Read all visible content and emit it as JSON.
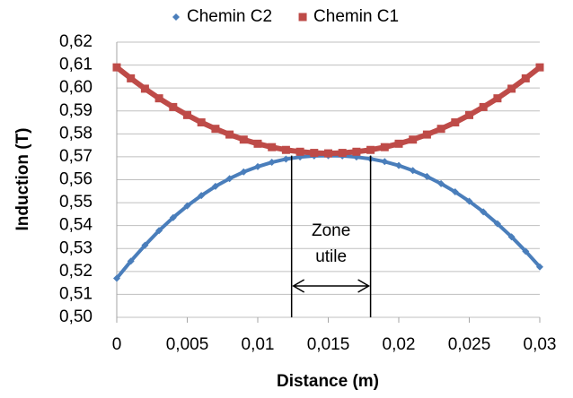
{
  "chart_data": {
    "type": "line",
    "x_label": "Distance (m)",
    "y_label": "Induction (T)",
    "x": [
      0,
      0.001,
      0.002,
      0.003,
      0.004,
      0.005,
      0.006,
      0.007,
      0.008,
      0.009,
      0.01,
      0.011,
      0.012,
      0.013,
      0.014,
      0.015,
      0.016,
      0.017,
      0.018,
      0.019,
      0.02,
      0.021,
      0.022,
      0.023,
      0.024,
      0.025,
      0.026,
      0.027,
      0.028,
      0.029,
      0.03
    ],
    "series": [
      {
        "name": "Chemin C2",
        "color": "#4a7ebb",
        "marker": "diamond",
        "values": [
          0.517,
          0.5245,
          0.5314,
          0.5378,
          0.5435,
          0.5486,
          0.5531,
          0.5571,
          0.5605,
          0.5634,
          0.5657,
          0.5676,
          0.569,
          0.5699,
          0.5704,
          0.5705,
          0.5704,
          0.5699,
          0.5691,
          0.5679,
          0.5662,
          0.564,
          0.5614,
          0.5583,
          0.5547,
          0.5506,
          0.546,
          0.5408,
          0.5351,
          0.5288,
          0.522
        ]
      },
      {
        "name": "Chemin C1",
        "color": "#be4b48",
        "marker": "square",
        "values": [
          0.609,
          0.6042,
          0.5997,
          0.5955,
          0.5917,
          0.5882,
          0.585,
          0.5822,
          0.5797,
          0.5775,
          0.5757,
          0.5742,
          0.573,
          0.5722,
          0.5717,
          0.5715,
          0.5717,
          0.5722,
          0.573,
          0.5742,
          0.5757,
          0.5775,
          0.5797,
          0.5822,
          0.585,
          0.5882,
          0.5917,
          0.5955,
          0.5997,
          0.6042,
          0.609
        ]
      }
    ],
    "xlim": [
      0,
      0.03
    ],
    "xticks": [
      0,
      {
        "value": 0.005,
        "label": "0,005"
      },
      {
        "value": 0.01,
        "label": "0,01"
      },
      {
        "value": 0.015,
        "label": "0,015"
      },
      {
        "value": 0.02,
        "label": "0,02"
      },
      {
        "value": 0.025,
        "label": "0,025"
      },
      {
        "value": 0.03,
        "label": "0,03"
      }
    ],
    "ylim": [
      0.5,
      0.62
    ],
    "yticks": [
      {
        "value": 0.5,
        "label": "0,50"
      },
      {
        "value": 0.51,
        "label": "0,51"
      },
      {
        "value": 0.52,
        "label": "0,52"
      },
      {
        "value": 0.53,
        "label": "0,53"
      },
      {
        "value": 0.54,
        "label": "0,54"
      },
      {
        "value": 0.55,
        "label": "0,55"
      },
      {
        "value": 0.56,
        "label": "0,56"
      },
      {
        "value": 0.57,
        "label": "0,57"
      },
      {
        "value": 0.58,
        "label": "0,58"
      },
      {
        "value": 0.59,
        "label": "0,59"
      },
      {
        "value": 0.6,
        "label": "0,60"
      },
      {
        "value": 0.61,
        "label": "0,61"
      },
      {
        "value": 0.62,
        "label": "0,62"
      }
    ],
    "grid": true,
    "legend": "top",
    "zone": {
      "x": [
        0.0124,
        0.018
      ],
      "top": 0.5705,
      "label": [
        "Zone",
        "utile"
      ]
    }
  }
}
